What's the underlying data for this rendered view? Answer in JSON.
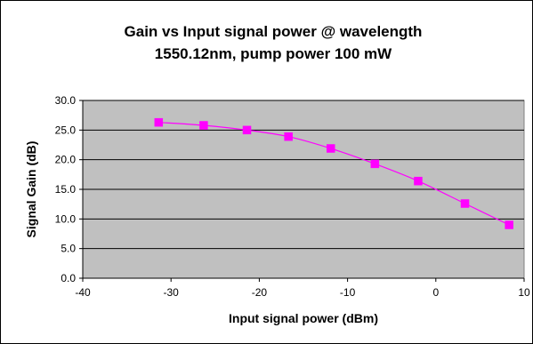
{
  "chart_data": {
    "type": "line",
    "title_line1": "Gain vs Input signal power @ wavelength",
    "title_line2": "1550.12nm, pump power 100 mW",
    "xlabel": "Input signal power (dBm)",
    "ylabel": "Signal Gain (dB)",
    "xlim": [
      -40,
      10
    ],
    "ylim": [
      0,
      30
    ],
    "x_ticks": [
      "-40",
      "-30",
      "-20",
      "-10",
      "0",
      "10"
    ],
    "y_ticks": [
      "0.0",
      "5.0",
      "10.0",
      "15.0",
      "20.0",
      "25.0",
      "30.0"
    ],
    "grid": "horizontal",
    "plot_background": "#c0c0c0",
    "series": [
      {
        "color": "#ff00ff",
        "marker": "square",
        "smooth": true,
        "x": [
          -31.4,
          -26.3,
          -21.4,
          -16.7,
          -11.9,
          -6.9,
          -2.0,
          3.3,
          8.3
        ],
        "y": [
          26.3,
          25.8,
          25.0,
          23.9,
          21.9,
          19.3,
          16.4,
          12.6,
          9.0
        ]
      }
    ]
  }
}
